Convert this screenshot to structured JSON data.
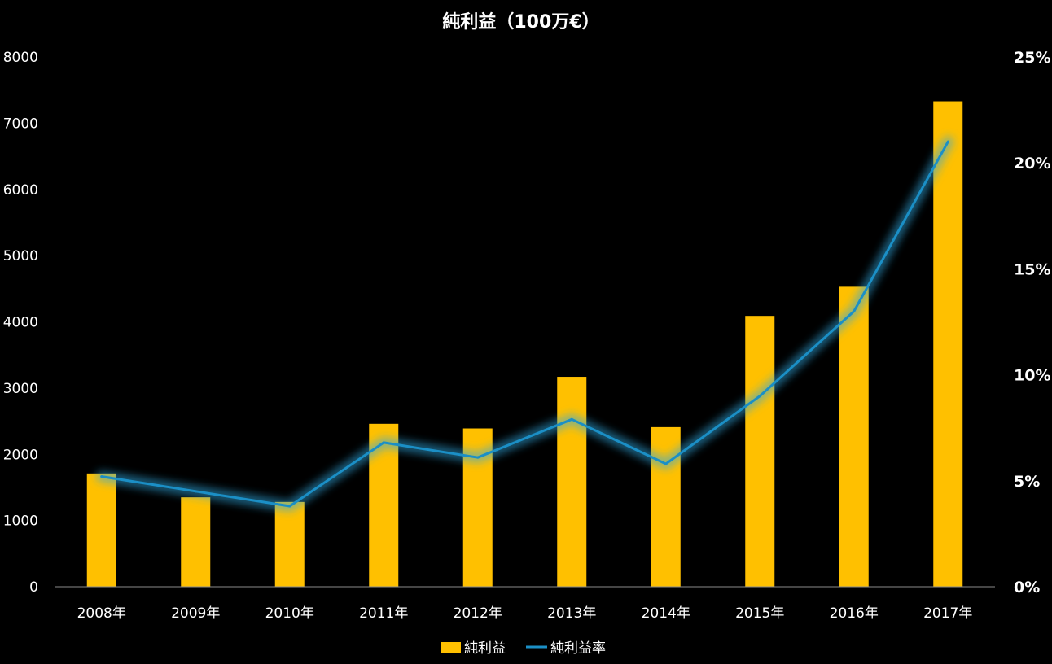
{
  "chart_data": {
    "type": "bar+line",
    "title": "純利益（100万€）",
    "categories": [
      "2008年",
      "2009年",
      "2010年",
      "2011年",
      "2012年",
      "2013年",
      "2014年",
      "2015年",
      "2016年",
      "2017年"
    ],
    "series": [
      {
        "name": "純利益",
        "type": "bar",
        "axis": "left",
        "color": "#FFC000",
        "values": [
          1710,
          1350,
          1280,
          2460,
          2390,
          3170,
          2410,
          4090,
          4530,
          7330
        ]
      },
      {
        "name": "純利益率",
        "type": "line",
        "axis": "right",
        "color": "#1B8FC6",
        "values": [
          5.2,
          4.5,
          3.8,
          6.8,
          6.1,
          7.9,
          5.8,
          9.0,
          13.0,
          21.0
        ]
      }
    ],
    "y_left": {
      "min": 0,
      "max": 8000,
      "ticks": [
        "0",
        "1000",
        "2000",
        "3000",
        "4000",
        "5000",
        "6000",
        "7000",
        "8000"
      ]
    },
    "y_right": {
      "min": 0,
      "max": 25,
      "ticks": [
        "0%",
        "5%",
        "10%",
        "15%",
        "20%",
        "25%"
      ]
    },
    "legend": {
      "position": "bottom",
      "items": [
        "純利益",
        "純利益率"
      ]
    },
    "grid": false,
    "background": "#000000"
  }
}
